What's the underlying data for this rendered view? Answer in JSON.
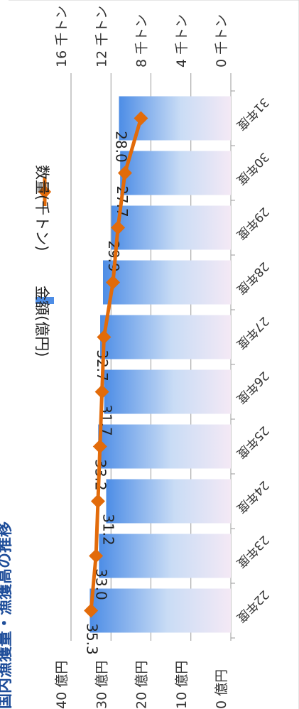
{
  "chart_data": {
    "type": "bar",
    "title": "国内漁獲量・漁獲高の推移",
    "categories": [
      "22年度",
      "23年度",
      "24年度",
      "25年度",
      "26年度",
      "27年度",
      "28年度",
      "29年度",
      "30年度",
      "31年度"
    ],
    "series": [
      {
        "name": "金額(億円)",
        "kind": "bar",
        "axis": "left",
        "values": [
          35.3,
          33.0,
          31.2,
          33.2,
          31.7,
          32.7,
          32.0,
          29.9,
          27.7,
          28.0
        ],
        "data_labels": [
          "35.3",
          "33.0",
          "31.2",
          "33.2",
          "31.7",
          "32.7",
          "",
          "29.9",
          "27.7",
          "28.0"
        ]
      },
      {
        "name": "数量(千トン)",
        "kind": "line",
        "axis": "right",
        "values": [
          14.0,
          13.5,
          13.3,
          13.1,
          12.9,
          12.7,
          11.8,
          11.3,
          10.6,
          9.0
        ]
      }
    ],
    "y_left": {
      "ticks": [
        0,
        10,
        20,
        30,
        40
      ],
      "tick_labels": [
        "0 億円",
        "10 億円",
        "20 億円",
        "30 億円",
        "40 億円"
      ],
      "ylim": [
        0,
        40
      ]
    },
    "y_right": {
      "ticks": [
        0,
        4,
        8,
        12,
        16
      ],
      "tick_labels": [
        "0 千トン",
        "4 千トン",
        "8 千トン",
        "12 千トン",
        "16 千トン"
      ],
      "ylim": [
        0,
        16
      ]
    },
    "grid": true,
    "legend": "right",
    "colors": {
      "bar_dark": "#4d8de6",
      "bar_light": "#f4e9f5",
      "line": "#e26b0a",
      "marker": "#e26b0a",
      "grid": "#9a9a9a",
      "title": "#1f4e9a"
    }
  }
}
